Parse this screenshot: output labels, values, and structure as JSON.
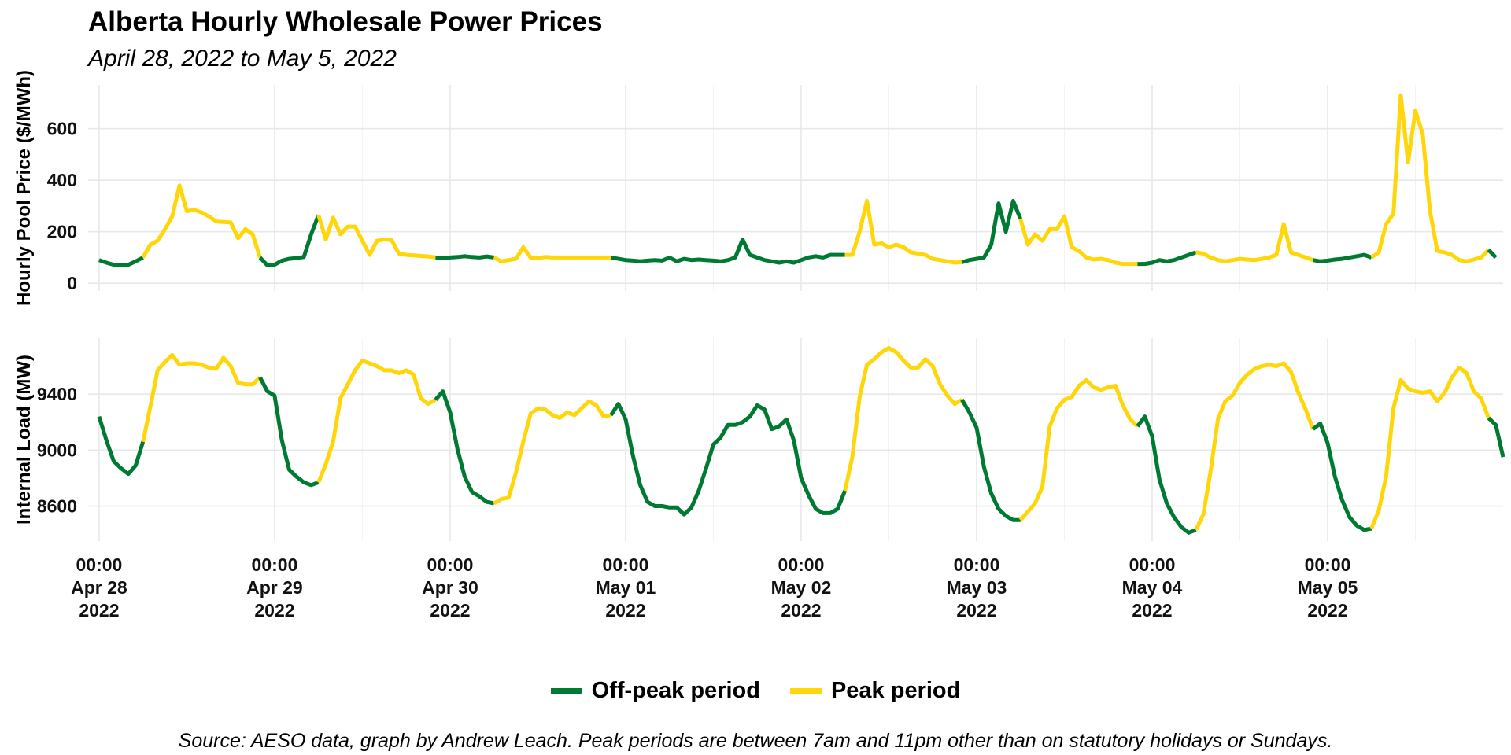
{
  "chart_data": {
    "type": "line",
    "title": "Alberta Hourly Wholesale Power Prices",
    "subtitle": "April 28, 2022 to May 5, 2022",
    "caption": "Source: AESO data, graph by Andrew Leach. Peak periods are between 7am and 11pm other than on statutory holidays or Sundays.",
    "legend": {
      "position": "bottom",
      "entries": [
        {
          "label": "Off-peak period",
          "color": "#007A33"
        },
        {
          "label": "Peak period",
          "color": "#FFD60A"
        }
      ]
    },
    "x_ticks": [
      {
        "hour": 0,
        "lines": [
          "00:00",
          "Apr 28",
          "2022"
        ]
      },
      {
        "hour": 24,
        "lines": [
          "00:00",
          "Apr 29",
          "2022"
        ]
      },
      {
        "hour": 48,
        "lines": [
          "00:00",
          "Apr 30",
          "2022"
        ]
      },
      {
        "hour": 72,
        "lines": [
          "00:00",
          "May 01",
          "2022"
        ]
      },
      {
        "hour": 96,
        "lines": [
          "00:00",
          "May 02",
          "2022"
        ]
      },
      {
        "hour": 120,
        "lines": [
          "00:00",
          "May 03",
          "2022"
        ]
      },
      {
        "hour": 144,
        "lines": [
          "00:00",
          "May 04",
          "2022"
        ]
      },
      {
        "hour": 168,
        "lines": [
          "00:00",
          "May 05",
          "2022"
        ]
      }
    ],
    "x_range": [
      -1.5,
      192
    ],
    "period_pattern": {
      "weekday_peak_hours": [
        7,
        22
      ],
      "peak_days": [
        "Apr 28",
        "Apr 29",
        "Apr 30",
        "May 02",
        "May 03",
        "May 04",
        "May 05"
      ],
      "offpeak_days": [
        "May 01"
      ]
    },
    "panels": [
      {
        "name": "price",
        "ylabel": "Hourly Pool Price ($/MWh)",
        "yticks": [
          0,
          200,
          400,
          600
        ],
        "ylim": [
          -30,
          770
        ],
        "series": [
          {
            "day": "Apr 28",
            "values": [
              90,
              80,
              72,
              70,
              72,
              85,
              100,
              150,
              165,
              210,
              260,
              380,
              280,
              285,
              275,
              260,
              240,
              238,
              236,
              175,
              210,
              190,
              100,
              70
            ]
          },
          {
            "day": "Apr 29",
            "values": [
              72,
              88,
              95,
              98,
              102,
              190,
              265,
              170,
              255,
              190,
              220,
              220,
              165,
              110,
              165,
              170,
              168,
              115,
              110,
              108,
              106,
              104,
              100,
              98
            ]
          },
          {
            "day": "Apr 30",
            "values": [
              100,
              102,
              105,
              102,
              100,
              104,
              100,
              85,
              90,
              95,
              140,
              100,
              98,
              102,
              100,
              100,
              100,
              100,
              100,
              100,
              100,
              100,
              100,
              95
            ]
          },
          {
            "day": "May 01",
            "values": [
              90,
              88,
              85,
              88,
              90,
              88,
              100,
              85,
              95,
              90,
              92,
              90,
              88,
              85,
              90,
              100,
              170,
              110,
              100,
              90,
              85,
              80,
              85,
              80
            ]
          },
          {
            "day": "May 02",
            "values": [
              90,
              100,
              105,
              100,
              110,
              110,
              110,
              110,
              200,
              320,
              150,
              155,
              140,
              150,
              140,
              120,
              115,
              110,
              95,
              90,
              85,
              80,
              82,
              90
            ]
          },
          {
            "day": "May 03",
            "values": [
              95,
              100,
              150,
              310,
              200,
              320,
              250,
              150,
              190,
              165,
              210,
              210,
              260,
              140,
              125,
              100,
              92,
              95,
              90,
              80,
              75,
              75,
              75,
              75
            ]
          },
          {
            "day": "May 04",
            "values": [
              80,
              90,
              85,
              90,
              100,
              110,
              120,
              115,
              100,
              90,
              85,
              90,
              95,
              92,
              90,
              95,
              100,
              110,
              230,
              120,
              110,
              100,
              90,
              85
            ]
          },
          {
            "day": "May 05",
            "values": [
              88,
              92,
              95,
              100,
              105,
              110,
              100,
              120,
              230,
              270,
              730,
              470,
              670,
              580,
              280,
              125,
              120,
              110,
              90,
              85,
              92,
              100,
              130,
              100
            ]
          }
        ]
      },
      {
        "name": "load",
        "ylabel": "Internal Load (MW)",
        "yticks": [
          8600,
          9000,
          9400
        ],
        "ylim": [
          8350,
          9800
        ],
        "series": [
          {
            "day": "Apr 28",
            "values": [
              9240,
              9070,
              8920,
              8870,
              8830,
              8890,
              9060,
              9310,
              9570,
              9630,
              9680,
              9610,
              9620,
              9620,
              9610,
              9590,
              9580,
              9660,
              9600,
              9480,
              9470,
              9470,
              9520,
              9420
            ]
          },
          {
            "day": "Apr 29",
            "values": [
              9390,
              9070,
              8860,
              8810,
              8770,
              8750,
              8770,
              8900,
              9060,
              9370,
              9470,
              9570,
              9640,
              9620,
              9600,
              9570,
              9570,
              9550,
              9570,
              9540,
              9370,
              9330,
              9360,
              9420
            ]
          },
          {
            "day": "Apr 30",
            "values": [
              9270,
              9010,
              8810,
              8700,
              8670,
              8630,
              8620,
              8650,
              8660,
              8840,
              9060,
              9260,
              9300,
              9290,
              9250,
              9230,
              9270,
              9250,
              9300,
              9350,
              9320,
              9240,
              9250,
              9330
            ]
          },
          {
            "day": "May 01",
            "values": [
              9220,
              8960,
              8750,
              8630,
              8600,
              8600,
              8590,
              8590,
              8540,
              8590,
              8710,
              8870,
              9040,
              9090,
              9180,
              9180,
              9200,
              9240,
              9320,
              9290,
              9150,
              9170,
              9220,
              9070
            ]
          },
          {
            "day": "May 02",
            "values": [
              8800,
              8680,
              8580,
              8550,
              8550,
              8580,
              8710,
              8950,
              9380,
              9610,
              9650,
              9700,
              9730,
              9700,
              9640,
              9590,
              9590,
              9650,
              9600,
              9470,
              9390,
              9330,
              9360,
              9270
            ]
          },
          {
            "day": "May 03",
            "values": [
              9160,
              8880,
              8690,
              8580,
              8530,
              8500,
              8500,
              8560,
              8620,
              8740,
              9170,
              9300,
              9360,
              9380,
              9460,
              9500,
              9450,
              9430,
              9450,
              9460,
              9320,
              9220,
              9170,
              9240
            ]
          },
          {
            "day": "May 04",
            "values": [
              9100,
              8790,
              8620,
              8520,
              8450,
              8410,
              8430,
              8540,
              8850,
              9220,
              9350,
              9390,
              9480,
              9540,
              9580,
              9600,
              9610,
              9600,
              9620,
              9560,
              9410,
              9290,
              9150,
              9190
            ]
          },
          {
            "day": "May 05",
            "values": [
              9050,
              8810,
              8640,
              8520,
              8460,
              8430,
              8440,
              8570,
              8810,
              9300,
              9500,
              9440,
              9420,
              9410,
              9420,
              9350,
              9410,
              9520,
              9590,
              9550,
              9420,
              9370,
              9230,
              9180,
              8950
            ]
          }
        ]
      }
    ]
  }
}
